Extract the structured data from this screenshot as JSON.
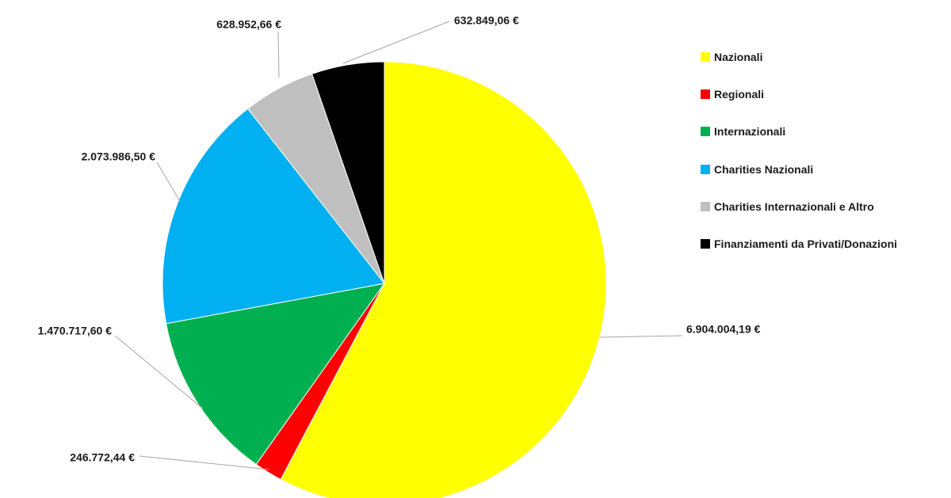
{
  "chart_data": {
    "type": "pie",
    "title": "",
    "series": [
      {
        "categories": [
          "Nazionali",
          "Regionali",
          "Internazionali",
          "Charities Nazionali",
          "Charities Internazionali e Altro",
          "Finanziamenti da Privati/Donazioni"
        ],
        "values": [
          6904004.19,
          246772.44,
          1470717.6,
          2073986.5,
          628952.66,
          632849.06
        ],
        "labels": [
          "6.904.004,19 €",
          "246.772,44 €",
          "1.470.717,60 €",
          "2.073.986,50 €",
          "628.952,66 €",
          "632.849,06 €"
        ],
        "colors": [
          "#ffff00",
          "#ff0000",
          "#00b050",
          "#00b0f0",
          "#bfbfbf",
          "#000000"
        ]
      }
    ],
    "legend": {
      "position": "right"
    }
  }
}
